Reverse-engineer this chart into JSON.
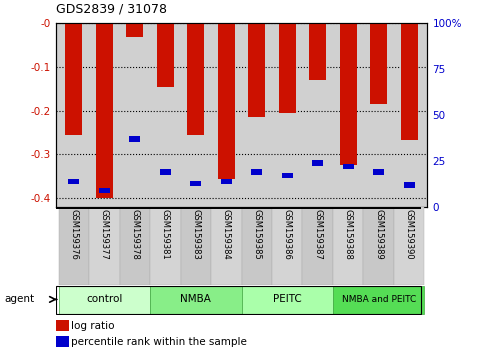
{
  "title": "GDS2839 / 31078",
  "samples": [
    "GSM159376",
    "GSM159377",
    "GSM159378",
    "GSM159381",
    "GSM159383",
    "GSM159384",
    "GSM159385",
    "GSM159386",
    "GSM159387",
    "GSM159388",
    "GSM159389",
    "GSM159390"
  ],
  "log_ratio": [
    -0.255,
    -0.4,
    -0.032,
    -0.145,
    -0.255,
    -0.355,
    -0.215,
    -0.205,
    -0.13,
    -0.325,
    -0.185,
    -0.268
  ],
  "percentile_rank": [
    14,
    9,
    37,
    19,
    13,
    14,
    19,
    17,
    24,
    22,
    19,
    12
  ],
  "ylim_left": [
    -0.42,
    0.0
  ],
  "ylim_right": [
    0,
    100
  ],
  "yticks_left": [
    0.0,
    -0.1,
    -0.2,
    -0.3,
    -0.4
  ],
  "yticks_right": [
    0,
    25,
    50,
    75,
    100
  ],
  "groups": [
    {
      "label": "control",
      "start": 0,
      "end": 3,
      "color": "#ccffcc"
    },
    {
      "label": "NMBA",
      "start": 3,
      "end": 6,
      "color": "#88ee88"
    },
    {
      "label": "PEITC",
      "start": 6,
      "end": 9,
      "color": "#aaffaa"
    },
    {
      "label": "NMBA and PEITC",
      "start": 9,
      "end": 12,
      "color": "#55dd55"
    }
  ],
  "bar_color": "#cc1100",
  "percentile_color": "#0000cc",
  "bar_width": 0.55,
  "bg_color": "#d0d0d0",
  "legend_items": [
    {
      "label": "log ratio",
      "color": "#cc1100"
    },
    {
      "label": "percentile rank within the sample",
      "color": "#0000cc"
    }
  ],
  "agent_label": "agent"
}
